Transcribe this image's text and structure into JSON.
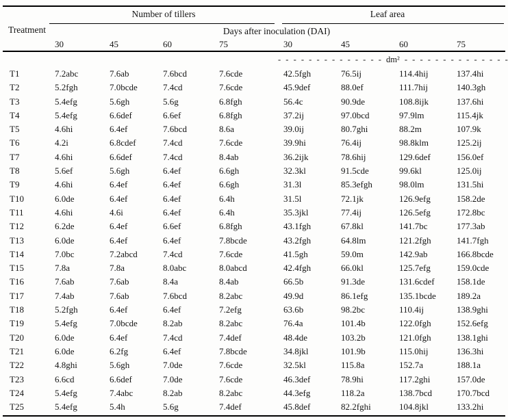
{
  "table": {
    "corner_header": "Treatment",
    "group_headers": {
      "tillers": "Number of tillers",
      "leaf_area": "Leaf area"
    },
    "subheader": "Days after inoculation (DAI)",
    "day_columns": [
      "30",
      "45",
      "60",
      "75",
      "30",
      "45",
      "60",
      "75"
    ],
    "unit_line": "- - - - - - - - - - - - - - dm² - - - - - - - - - - - - - -",
    "rows": [
      {
        "treatment": "T1",
        "values": [
          "7.2abc",
          "7.6ab",
          "7.6bcd",
          "7.6cde",
          "42.5fgh",
          "76.5ij",
          "114.4hij",
          "137.4hi"
        ]
      },
      {
        "treatment": "T2",
        "values": [
          "5.2fgh",
          "7.0bcde",
          "7.4cd",
          "7.6cde",
          "45.9def",
          "88.0ef",
          "111.7hij",
          "140.3gh"
        ]
      },
      {
        "treatment": "T3",
        "values": [
          "5.4efg",
          "5.6gh",
          "5.6g",
          "6.8fgh",
          "56.4c",
          "90.9de",
          "108.8ijk",
          "137.6hi"
        ]
      },
      {
        "treatment": "T4",
        "values": [
          "5.4efg",
          "6.6def",
          "6.6ef",
          "6.8fgh",
          "37.2ij",
          "97.0bcd",
          "97.9lm",
          "115.4jk"
        ]
      },
      {
        "treatment": "T5",
        "values": [
          "4.6hi",
          "6.4ef",
          "7.6bcd",
          "8.6a",
          "39.0ij",
          "80.7ghi",
          "88.2m",
          "107.9k"
        ]
      },
      {
        "treatment": "T6",
        "values": [
          "4.2i",
          "6.8cdef",
          "7.4cd",
          "7.6cde",
          "39.9hi",
          "76.4ij",
          "98.8klm",
          "125.2ij"
        ]
      },
      {
        "treatment": "T7",
        "values": [
          "4.6hi",
          "6.6def",
          "7.4cd",
          "8.4ab",
          "36.2ijk",
          "78.6hij",
          "129.6def",
          "156.0ef"
        ]
      },
      {
        "treatment": "T8",
        "values": [
          "5.6ef",
          "5.6gh",
          "6.4ef",
          "6.6gh",
          "32.3kl",
          "91.5cde",
          "99.6kl",
          "125.0ij"
        ]
      },
      {
        "treatment": "T9",
        "values": [
          "4.6hi",
          "6.4ef",
          "6.4ef",
          "6.6gh",
          "31.3l",
          "85.3efgh",
          "98.0lm",
          "131.5hi"
        ]
      },
      {
        "treatment": "T10",
        "values": [
          "6.0de",
          "6.4ef",
          "6.4ef",
          "6.4h",
          "31.5l",
          "72.1jk",
          "126.9efg",
          "158.2de"
        ]
      },
      {
        "treatment": "T11",
        "values": [
          "4.6hi",
          "4.6i",
          "6.4ef",
          "6.4h",
          "35.3jkl",
          "77.4ij",
          "126.5efg",
          "172.8bc"
        ]
      },
      {
        "treatment": "T12",
        "values": [
          "6.2de",
          "6.4ef",
          "6.6ef",
          "6.8fgh",
          "43.1fgh",
          "67.8kl",
          "141.7bc",
          "177.3ab"
        ]
      },
      {
        "treatment": "T13",
        "values": [
          "6.0de",
          "6.4ef",
          "6.4ef",
          "7.8bcde",
          "43.2fgh",
          "64.8lm",
          "121.2fgh",
          "141.7fgh"
        ]
      },
      {
        "treatment": "T14",
        "values": [
          "7.0bc",
          "7.2abcd",
          "7.4cd",
          "7.6cde",
          "41.5gh",
          "59.0m",
          "142.9ab",
          "166.8bcde"
        ]
      },
      {
        "treatment": "T15",
        "values": [
          "7.8a",
          "7.8a",
          "8.0abc",
          "8.0abcd",
          "42.4fgh",
          "66.0kl",
          "125.7efg",
          "159.0cde"
        ]
      },
      {
        "treatment": "T16",
        "values": [
          "7.6ab",
          "7.6ab",
          "8.4a",
          "8.4ab",
          "66.5b",
          "91.3de",
          "131.6cdef",
          "158.1de"
        ]
      },
      {
        "treatment": "T17",
        "values": [
          "7.4ab",
          "7.6ab",
          "7.6bcd",
          "8.2abc",
          "49.9d",
          "86.1efg",
          "135.1bcde",
          "189.2a"
        ]
      },
      {
        "treatment": "T18",
        "values": [
          "5.2fgh",
          "6.4ef",
          "6.4ef",
          "7.2efg",
          "63.6b",
          "98.2bc",
          "110.4ij",
          "138.9ghi"
        ]
      },
      {
        "treatment": "T19",
        "values": [
          "5.4efg",
          "7.0bcde",
          "8.2ab",
          "8.2abc",
          "76.4a",
          "101.4b",
          "122.0fgh",
          "152.6efg"
        ]
      },
      {
        "treatment": "T20",
        "values": [
          "6.0de",
          "6.4ef",
          "7.4cd",
          "7.4def",
          "48.4de",
          "103.2b",
          "121.0fgh",
          "138.1ghi"
        ]
      },
      {
        "treatment": "T21",
        "values": [
          "6.0de",
          "6.2fg",
          "6.4ef",
          "7.8bcde",
          "34.8jkl",
          "101.9b",
          "115.0hij",
          "136.3hi"
        ]
      },
      {
        "treatment": "T22",
        "values": [
          "4.8ghi",
          "5.6gh",
          "7.0de",
          "7.6cde",
          "32.5kl",
          "115.8a",
          "152.7a",
          "188.1a"
        ]
      },
      {
        "treatment": "T23",
        "values": [
          "6.6cd",
          "6.6def",
          "7.0de",
          "7.6cde",
          "46.3def",
          "78.9hi",
          "117.2ghi",
          "157.0de"
        ]
      },
      {
        "treatment": "T24",
        "values": [
          "5.4efg",
          "7.4abc",
          "8.2ab",
          "8.2abc",
          "44.3efg",
          "118.2a",
          "138.7bcd",
          "170.7bcd"
        ]
      },
      {
        "treatment": "T25",
        "values": [
          "5.4efg",
          "5.4h",
          "5.6g",
          "7.4def",
          "45.8def",
          "82.2fghi",
          "104.8jkl",
          "133.2hi"
        ]
      }
    ]
  }
}
